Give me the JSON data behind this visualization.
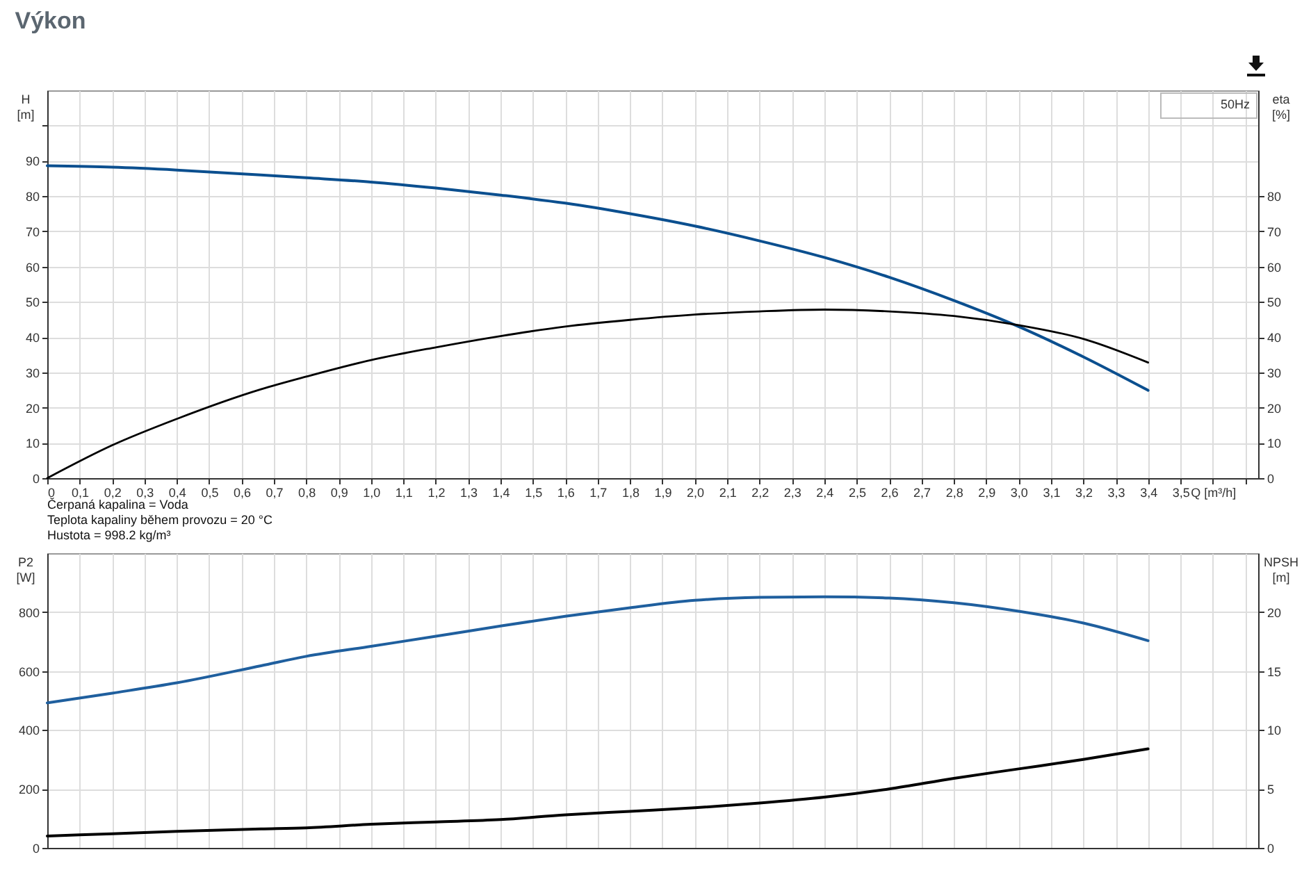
{
  "chart_data": [
    {
      "type": "line",
      "title": "Výkon",
      "ylabel": "H [m]",
      "y2label": "eta [%]",
      "xlabel": "Q [m³/h]",
      "x": [
        0,
        0.2,
        0.4,
        0.66,
        0.8,
        1.0,
        1.2,
        1.4,
        1.6,
        1.8,
        2.0,
        2.2,
        2.4,
        2.6,
        2.8,
        3.0,
        3.2,
        3.4
      ],
      "series": [
        {
          "color": "#0b4f8f",
          "values": [
            88.6,
            88.2,
            87.4,
            86.0,
            85.2,
            84.0,
            82.3,
            80.3,
            78.0,
            75.0,
            71.5,
            67.3,
            62.6,
            57.0,
            50.4,
            43.0,
            34.4,
            24.9
          ]
        },
        {
          "color": "#000000",
          "axis": "y2",
          "values": [
            0,
            9.3,
            16.8,
            25.2,
            28.8,
            33.5,
            37.1,
            40.3,
            43.0,
            44.9,
            46.4,
            47.3,
            47.8,
            47.3,
            46.0,
            43.4,
            39.5,
            32.8
          ]
        }
      ],
      "xlim": [
        0,
        3.74
      ],
      "xticks": [
        0,
        {
          "value": 0.1,
          "label": "0,1"
        },
        {
          "value": 0.2,
          "label": "0,2"
        },
        {
          "value": 0.3,
          "label": "0,3"
        },
        {
          "value": 0.4,
          "label": "0,4"
        },
        {
          "value": 0.5,
          "label": "0,5"
        },
        {
          "value": 0.6,
          "label": "0,6"
        },
        {
          "value": 0.7,
          "label": "0,7"
        },
        {
          "value": 0.8,
          "label": "0,8"
        },
        {
          "value": 0.9,
          "label": "0,9"
        },
        {
          "value": 1.0,
          "label": "1,0"
        },
        {
          "value": 1.1,
          "label": "1,1"
        },
        {
          "value": 1.2,
          "label": "1,2"
        },
        {
          "value": 1.3,
          "label": "1,3"
        },
        {
          "value": 1.4,
          "label": "1,4"
        },
        {
          "value": 1.5,
          "label": "1,5"
        },
        {
          "value": 1.6,
          "label": "1,6"
        },
        {
          "value": 1.7,
          "label": "1,7"
        },
        {
          "value": 1.8,
          "label": "1,8"
        },
        {
          "value": 1.9,
          "label": "1,9"
        },
        {
          "value": 2.0,
          "label": "2,0"
        },
        {
          "value": 2.1,
          "label": "2,1"
        },
        {
          "value": 2.2,
          "label": "2,2"
        },
        {
          "value": 2.3,
          "label": "2,3"
        },
        {
          "value": 2.4,
          "label": "2,4"
        },
        {
          "value": 2.5,
          "label": "2,5"
        },
        {
          "value": 2.6,
          "label": "2,6"
        },
        {
          "value": 2.7,
          "label": "2,7"
        },
        {
          "value": 2.8,
          "label": "2,8"
        },
        {
          "value": 2.9,
          "label": "2,9"
        },
        {
          "value": 3.0,
          "label": "3,0"
        },
        {
          "value": 3.1,
          "label": "3,1"
        },
        {
          "value": 3.2,
          "label": "3,2"
        },
        {
          "value": 3.3,
          "label": "3,3"
        },
        {
          "value": 3.4,
          "label": "3,4"
        },
        {
          "value": 3.5,
          "label": "3,5"
        },
        {
          "value": 3.6,
          "label": null
        },
        {
          "value": 3.7,
          "label": null
        }
      ],
      "ylim": [
        0,
        110
      ],
      "yticks": [
        0,
        10,
        20,
        30,
        40,
        50,
        60,
        70,
        80,
        90,
        {
          "value": 100,
          "label": null
        }
      ],
      "y2lim": [
        0,
        110
      ],
      "y2ticks": [
        0,
        10,
        20,
        30,
        40,
        50,
        60,
        70,
        80
      ],
      "grid": true,
      "annotations": [
        "50Hz",
        "Čerpaná kapalina = Voda",
        "Teplota kapaliny během provozu = 20 °C",
        "Hustota = 998.2 kg/m³"
      ]
    },
    {
      "type": "line",
      "ylabel": "P2 [W]",
      "y2label": "NPSH [m]",
      "x": [
        0,
        0.2,
        0.4,
        0.66,
        0.8,
        1.0,
        1.2,
        1.4,
        1.6,
        1.8,
        2.0,
        2.2,
        2.4,
        2.6,
        2.8,
        3.0,
        3.2,
        3.4
      ],
      "series": [
        {
          "color": "#1f5f9e",
          "values": [
            492,
            525,
            560,
            618,
            650,
            684,
            718,
            753,
            786,
            815,
            840,
            850,
            852,
            848,
            832,
            803,
            763,
            703
          ]
        },
        {
          "color": "#000000",
          "axis": "y2",
          "values": [
            1.0,
            1.2,
            1.4,
            1.6,
            1.7,
            2.0,
            2.2,
            2.4,
            2.8,
            3.1,
            3.4,
            3.8,
            4.3,
            5.0,
            5.9,
            6.7,
            7.5,
            8.4
          ]
        }
      ],
      "xlim": [
        0,
        3.74
      ],
      "xticks": [
        0,
        0.1,
        0.2,
        0.3,
        0.4,
        0.5,
        0.6,
        0.7,
        0.8,
        0.9,
        1.0,
        1.1,
        1.2,
        1.3,
        1.4,
        1.5,
        1.6,
        1.7,
        1.8,
        1.9,
        2.0,
        2.1,
        2.2,
        2.3,
        2.4,
        2.5,
        2.6,
        2.7,
        2.8,
        2.9,
        3.0,
        3.1,
        3.2,
        3.3,
        3.4,
        3.5,
        3.6,
        3.7
      ],
      "ylim": [
        0,
        1000
      ],
      "yticks": [
        0,
        200,
        400,
        600,
        800
      ],
      "y2lim": [
        0,
        25
      ],
      "y2ticks": [
        0,
        5,
        10,
        15,
        20
      ],
      "grid": true,
      "tick_labels": "y"
    }
  ]
}
